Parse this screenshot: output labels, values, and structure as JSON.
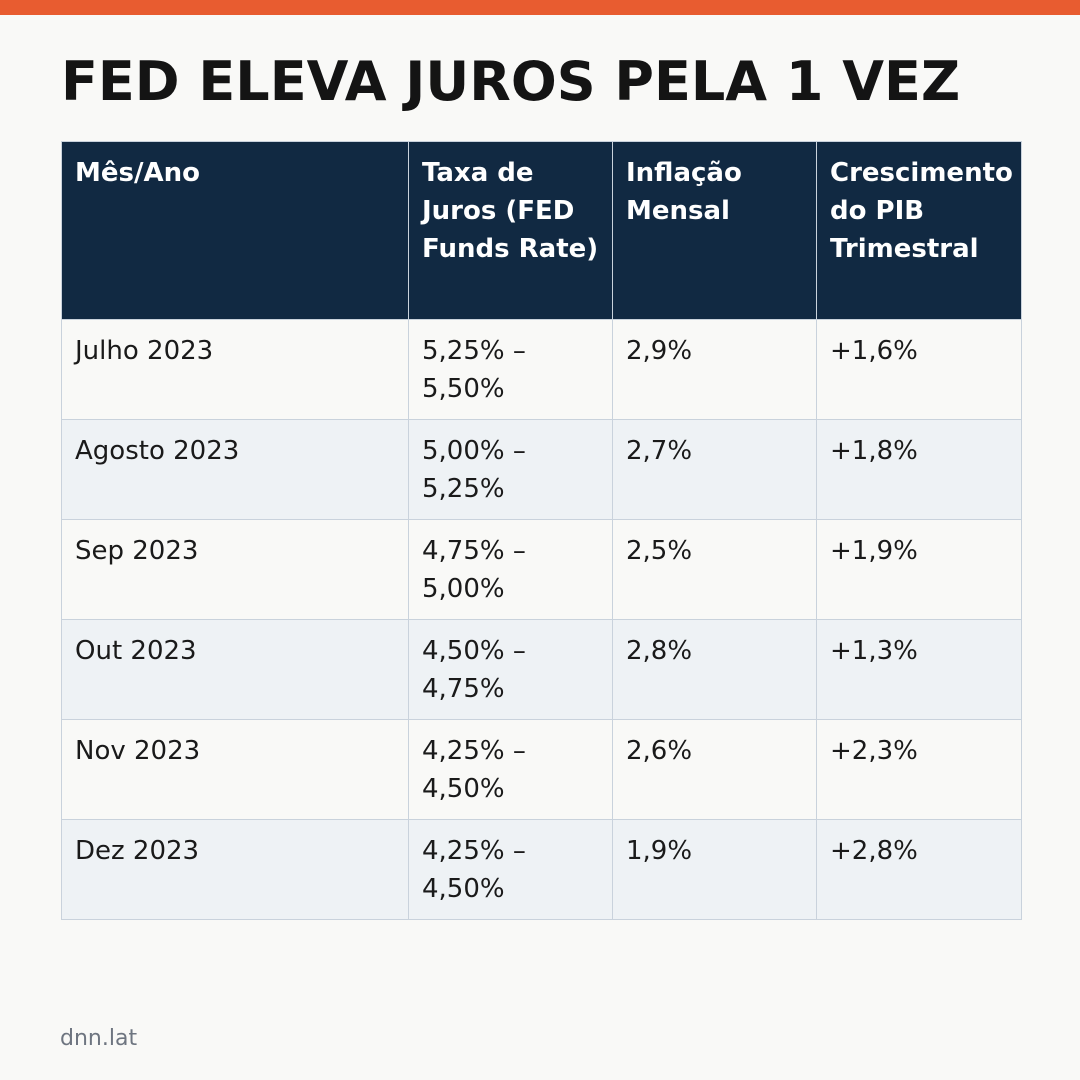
{
  "colors": {
    "accent_bar": "#e85c30",
    "header_bg": "#112942",
    "row_alt_bg": "#eef2f5",
    "border": "#c9d2dc"
  },
  "headline": "FED ELEVA JUROS PELA 1 VEZ",
  "table": {
    "headers": [
      "Mês/Ano",
      "Taxa de Juros (FED Funds Rate)",
      "Inflação Mensal",
      "Crescimento do PIB Trimestral"
    ],
    "rows": [
      {
        "month": "Julho 2023",
        "rate_low": "5,25% –",
        "rate_high": "5,50%",
        "inflation": "2,9%",
        "gdp": "+1,6%"
      },
      {
        "month": "Agosto 2023",
        "rate_low": "5,00% –",
        "rate_high": "5,25%",
        "inflation": "2,7%",
        "gdp": "+1,8%"
      },
      {
        "month": "Sep 2023",
        "rate_low": "4,75% –",
        "rate_high": "5,00%",
        "inflation": "2,5%",
        "gdp": "+1,9%"
      },
      {
        "month": "Out 2023",
        "rate_low": "4,50% –",
        "rate_high": "4,75%",
        "inflation": "2,8%",
        "gdp": "+1,3%"
      },
      {
        "month": "Nov 2023",
        "rate_low": "4,25% –",
        "rate_high": "4,50%",
        "inflation": "2,6%",
        "gdp": "+2,3%"
      },
      {
        "month": "Dez 2023",
        "rate_low": "4,25% –",
        "rate_high": "4,50%",
        "inflation": "1,9%",
        "gdp": "+2,8%"
      }
    ]
  },
  "footer": {
    "source": "dnn.lat"
  }
}
